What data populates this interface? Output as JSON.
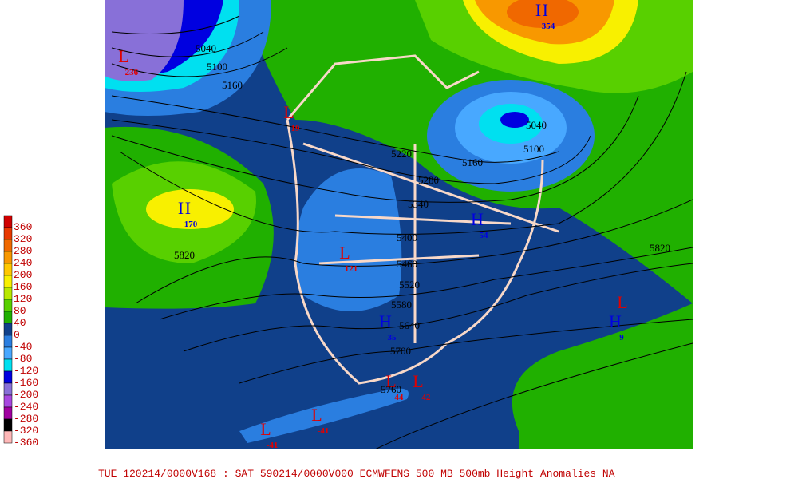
{
  "legend": {
    "labels": [
      "360",
      "320",
      "280",
      "240",
      "200",
      "160",
      "120",
      "80",
      "40",
      "0",
      "-40",
      "-80",
      "-120",
      "-160",
      "-200",
      "-240",
      "-280",
      "-320",
      "-360"
    ],
    "colors": [
      "#d00000",
      "#e83800",
      "#f06800",
      "#f89800",
      "#ffc800",
      "#f8f000",
      "#b8e800",
      "#58d000",
      "#20b000",
      "#10408a",
      "#2a7ee0",
      "#48a8ff",
      "#00e0f0",
      "#0000e0",
      "#8870d8",
      "#a848e0",
      "#a000a0",
      "#000000",
      "#ffb8b8"
    ]
  },
  "centers": [
    {
      "letter": "L",
      "value": "-236"
    },
    {
      "letter": "L",
      "value": "19"
    },
    {
      "letter": "H",
      "value": "170"
    },
    {
      "letter": "L",
      "value": "121"
    },
    {
      "letter": "H",
      "value": "354"
    },
    {
      "letter": "H",
      "value": "54"
    },
    {
      "letter": "H",
      "value": "35"
    },
    {
      "letter": "L",
      "value": "-44"
    },
    {
      "letter": "L",
      "value": "-42"
    },
    {
      "letter": "L",
      "value": "-41"
    },
    {
      "letter": "L",
      "value": "-41"
    },
    {
      "letter": "L"
    },
    {
      "letter": "H",
      "value": "9"
    }
  ],
  "contour_labels": [
    "5040",
    "5100",
    "5160",
    "5220",
    "5160",
    "5100",
    "5040",
    "5280",
    "5340",
    "5400",
    "5460",
    "5520",
    "5580",
    "5640",
    "5700",
    "5760",
    "5820",
    "5820"
  ],
  "footer": "TUE 120214/0000V168 : SAT 590214/0000V000  ECMWFENS  500 MB 500mb Height Anomalies NA"
}
